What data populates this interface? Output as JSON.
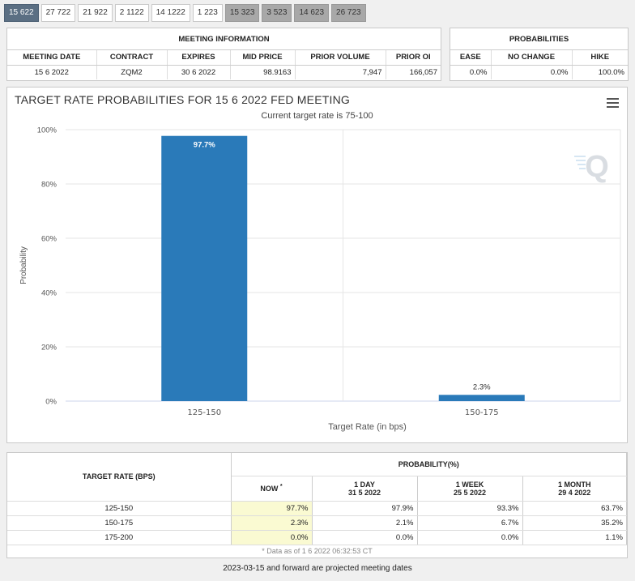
{
  "tabs": [
    {
      "label": "15 622",
      "state": "active"
    },
    {
      "label": "27 722",
      "state": "normal"
    },
    {
      "label": "21 922",
      "state": "normal"
    },
    {
      "label": "2 1122",
      "state": "normal"
    },
    {
      "label": "14 1222",
      "state": "normal"
    },
    {
      "label": "1 223",
      "state": "normal"
    },
    {
      "label": "15 323",
      "state": "projected"
    },
    {
      "label": "3 523",
      "state": "projected"
    },
    {
      "label": "14 623",
      "state": "projected"
    },
    {
      "label": "26 723",
      "state": "projected"
    }
  ],
  "meeting_info": {
    "title": "MEETING INFORMATION",
    "headers": {
      "meeting_date": "MEETING DATE",
      "contract": "CONTRACT",
      "expires": "EXPIRES",
      "mid_price": "MID PRICE",
      "prior_volume": "PRIOR VOLUME",
      "prior_oi": "PRIOR OI"
    },
    "values": {
      "meeting_date": "15 6 2022",
      "contract": "ZQM2",
      "expires": "30 6 2022",
      "mid_price": "98.9163",
      "prior_volume": "7,947",
      "prior_oi": "166,057"
    }
  },
  "probabilities": {
    "title": "PROBABILITIES",
    "headers": {
      "ease": "EASE",
      "no_change": "NO CHANGE",
      "hike": "HIKE"
    },
    "values": {
      "ease": "0.0%",
      "no_change": "0.0%",
      "hike": "100.0%"
    }
  },
  "chart_data": {
    "type": "bar",
    "title": "TARGET RATE PROBABILITIES FOR 15 6 2022 FED MEETING",
    "subtitle": "Current target rate is 75-100",
    "xlabel": "Target Rate (in bps)",
    "ylabel": "Probability",
    "categories": [
      "125-150",
      "150-175"
    ],
    "values": [
      97.7,
      2.3
    ],
    "data_labels": [
      "97.7%",
      "2.3%"
    ],
    "ylim": [
      0,
      100
    ],
    "yticks": [
      "0%",
      "20%",
      "40%",
      "60%",
      "80%",
      "100%"
    ],
    "ytick_values": [
      0,
      20,
      40,
      60,
      80,
      100
    ],
    "grid": true,
    "bar_color": "#2a7ab9",
    "watermark": "Q"
  },
  "rates_table": {
    "target_header": "TARGET RATE (BPS)",
    "prob_header": "PROBABILITY(%)",
    "columns": [
      {
        "line1": "NOW",
        "sup": "*",
        "line2": ""
      },
      {
        "line1": "1 DAY",
        "line2": "31 5 2022"
      },
      {
        "line1": "1 WEEK",
        "line2": "25 5 2022"
      },
      {
        "line1": "1 MONTH",
        "line2": "29 4 2022"
      }
    ],
    "rows": [
      {
        "rate": "125-150",
        "now": "97.7%",
        "day": "97.9%",
        "week": "93.3%",
        "month": "63.7%"
      },
      {
        "rate": "150-175",
        "now": "2.3%",
        "day": "2.1%",
        "week": "6.7%",
        "month": "35.2%"
      },
      {
        "rate": "175-200",
        "now": "0.0%",
        "day": "0.0%",
        "week": "0.0%",
        "month": "1.1%"
      }
    ],
    "footnote": "* Data as of 1 6 2022 06:32:53 CT"
  },
  "bottom_note": "2023-03-15 and forward are projected meeting dates"
}
